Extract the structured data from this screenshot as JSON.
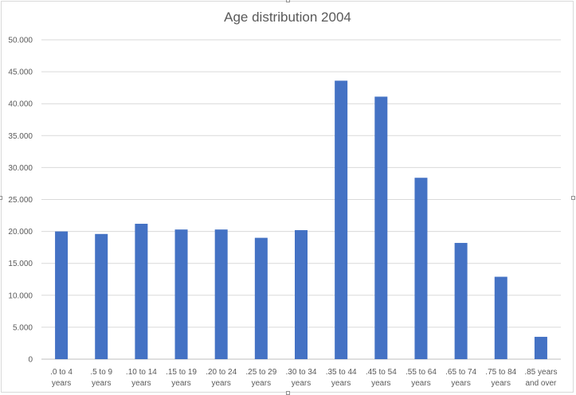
{
  "chart_data": {
    "type": "bar",
    "title": "Age distribution 2004",
    "xlabel": "",
    "ylabel": "",
    "categories": [
      ".0 to 4 years",
      ".5 to 9 years",
      ".10 to 14 years",
      ".15 to 19 years",
      ".20 to 24 years",
      ".25 to 29 years",
      ".30 to 34 years",
      ".35 to 44 years",
      ".45 to 54 years",
      ".55 to 64 years",
      ".65 to 74 years",
      ".75 to 84 years",
      ".85 years and over"
    ],
    "category_lines": [
      [
        ".0 to 4",
        "years"
      ],
      [
        ".5 to 9",
        "years"
      ],
      [
        ".10 to 14",
        "years"
      ],
      [
        ".15 to 19",
        "years"
      ],
      [
        ".20 to 24",
        "years"
      ],
      [
        ".25 to 29",
        "years"
      ],
      [
        ".30 to 34",
        "years"
      ],
      [
        ".35 to 44",
        "years"
      ],
      [
        ".45 to 54",
        "years"
      ],
      [
        ".55 to 64",
        "years"
      ],
      [
        ".65 to 74",
        "years"
      ],
      [
        ".75 to 84",
        "years"
      ],
      [
        ".85 years",
        "and over"
      ]
    ],
    "values": [
      20000,
      19600,
      21200,
      20300,
      20300,
      19000,
      20200,
      43600,
      41100,
      28400,
      18200,
      12900,
      3500
    ],
    "ylim": [
      0,
      50000
    ],
    "yticks": [
      0,
      5000,
      10000,
      15000,
      20000,
      25000,
      30000,
      35000,
      40000,
      45000,
      50000
    ],
    "ytick_labels": [
      "0",
      "5.000",
      "10.000",
      "15.000",
      "20.000",
      "25.000",
      "30.000",
      "35.000",
      "40.000",
      "45.000",
      "50.000"
    ],
    "grid": true,
    "legend": "none",
    "colors": {
      "bar": "#4472c4",
      "grid": "#d9d9d9",
      "text": "#595959"
    }
  }
}
